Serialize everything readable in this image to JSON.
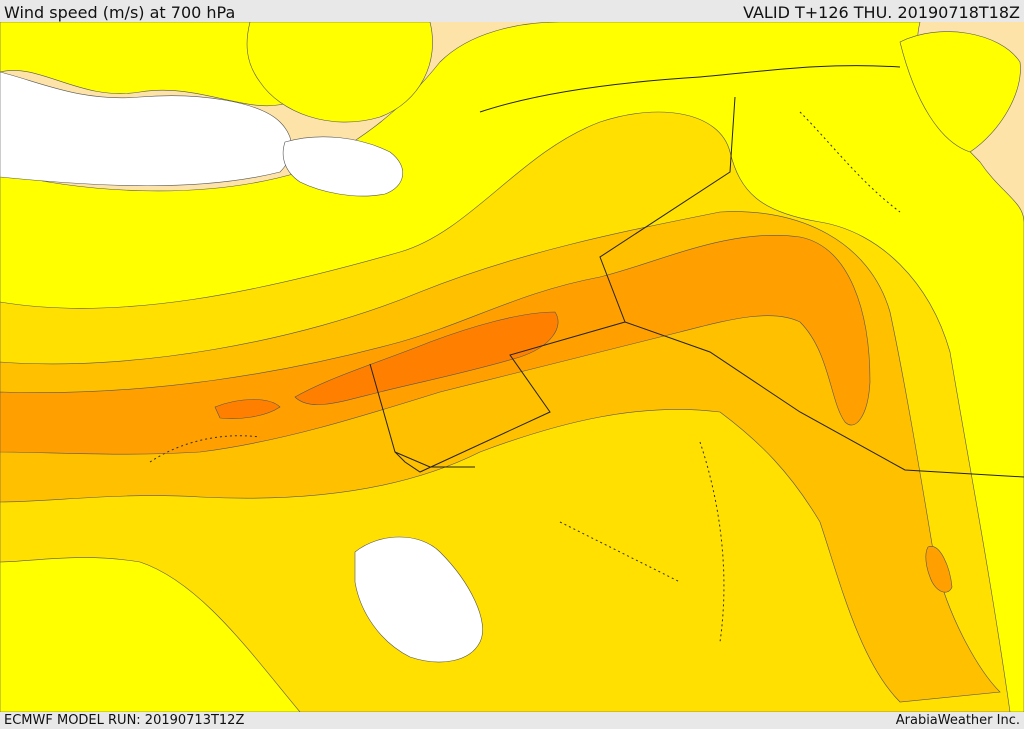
{
  "header": {
    "title": "Wind speed (m/s) at 700 hPa",
    "valid": "VALID T+126 THU. 20190718T18Z"
  },
  "footer": {
    "model_run": "ECMWF MODEL RUN: 20190713T12Z",
    "credit": "ArabiaWeather Inc."
  },
  "colors": {
    "band_lowest": "#fde3a7",
    "band_low": "#ffff00",
    "band_mid": "#ffe000",
    "band_high": "#ffc000",
    "band_higher": "#ffa000",
    "band_highest": "#ff8000",
    "sea": "#ffffff"
  }
}
